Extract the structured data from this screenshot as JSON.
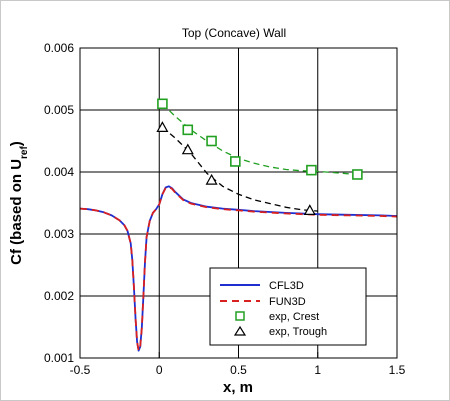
{
  "chart_data": {
    "type": "line",
    "title": "Top (Concave) Wall",
    "xlabel": "x, m",
    "ylabel": {
      "main": "Cf (based on U",
      "sub": "ref",
      "close": ")"
    },
    "xlim": [
      -0.5,
      1.5
    ],
    "ylim": [
      0.001,
      0.006
    ],
    "x_ticks": [
      -0.5,
      0,
      0.5,
      1,
      1.5
    ],
    "x_tick_labels": [
      "-0.5",
      "0",
      "0.5",
      "1",
      "1.5"
    ],
    "y_ticks": [
      0.001,
      0.002,
      0.003,
      0.004,
      0.005,
      0.006
    ],
    "y_tick_labels": [
      "0.001",
      "0.002",
      "0.003",
      "0.004",
      "0.005",
      "0.006"
    ],
    "grid": true,
    "legend_position": "bottom-right",
    "series": [
      {
        "name": "CFL3D",
        "kind": "line",
        "style": "solid",
        "color": "#1f2fcf",
        "x": [
          -0.5,
          -0.45,
          -0.4,
          -0.35,
          -0.3,
          -0.25,
          -0.22,
          -0.2,
          -0.18,
          -0.17,
          -0.16,
          -0.15,
          -0.14,
          -0.13,
          -0.12,
          -0.11,
          -0.1,
          -0.09,
          -0.08,
          -0.06,
          -0.04,
          -0.02,
          0.0,
          0.02,
          0.04,
          0.06,
          0.08,
          0.1,
          0.15,
          0.2,
          0.3,
          0.4,
          0.5,
          0.6,
          0.8,
          1.0,
          1.2,
          1.4,
          1.5
        ],
        "y": [
          0.00341,
          0.0034,
          0.00338,
          0.00335,
          0.0033,
          0.00322,
          0.00314,
          0.00305,
          0.00285,
          0.00258,
          0.00215,
          0.00165,
          0.00126,
          0.00112,
          0.00118,
          0.00148,
          0.002,
          0.00255,
          0.00295,
          0.00321,
          0.00334,
          0.0034,
          0.00348,
          0.00364,
          0.00375,
          0.00377,
          0.00374,
          0.00368,
          0.00356,
          0.0035,
          0.00344,
          0.00341,
          0.00339,
          0.00337,
          0.00334,
          0.00332,
          0.00331,
          0.0033,
          0.00329
        ]
      },
      {
        "name": "FUN3D",
        "kind": "line",
        "style": "dashed",
        "color": "#d92020",
        "x": [
          -0.5,
          -0.45,
          -0.4,
          -0.35,
          -0.3,
          -0.25,
          -0.22,
          -0.2,
          -0.18,
          -0.17,
          -0.16,
          -0.15,
          -0.14,
          -0.13,
          -0.12,
          -0.11,
          -0.1,
          -0.09,
          -0.08,
          -0.06,
          -0.04,
          -0.02,
          0.0,
          0.02,
          0.04,
          0.06,
          0.08,
          0.1,
          0.15,
          0.2,
          0.3,
          0.4,
          0.5,
          0.6,
          0.8,
          1.0,
          1.2,
          1.4,
          1.5
        ],
        "y": [
          0.00341,
          0.0034,
          0.00338,
          0.00335,
          0.0033,
          0.00322,
          0.00314,
          0.00305,
          0.00285,
          0.00258,
          0.00215,
          0.00165,
          0.00126,
          0.00112,
          0.00118,
          0.00148,
          0.002,
          0.00255,
          0.00295,
          0.00321,
          0.00334,
          0.0034,
          0.00348,
          0.00364,
          0.00374,
          0.00376,
          0.00373,
          0.00367,
          0.00355,
          0.00349,
          0.00343,
          0.0034,
          0.00338,
          0.00336,
          0.00333,
          0.00331,
          0.0033,
          0.00329,
          0.00328
        ]
      },
      {
        "name": "exp, Crest",
        "kind": "scatter",
        "marker": "square",
        "color": "#22a022",
        "x": [
          0.02,
          0.18,
          0.33,
          0.48,
          0.96,
          1.25
        ],
        "y": [
          0.0051,
          0.00468,
          0.0045,
          0.00417,
          0.00403,
          0.00396
        ],
        "fit": {
          "style": "dashed",
          "x": [
            0.02,
            0.1,
            0.2,
            0.3,
            0.4,
            0.5,
            0.6,
            0.7,
            0.8,
            0.9,
            1.0,
            1.1,
            1.25
          ],
          "y": [
            0.0051,
            0.0049,
            0.00468,
            0.0045,
            0.00434,
            0.00422,
            0.00414,
            0.00408,
            0.00404,
            0.00402,
            0.00401,
            0.00399,
            0.00396
          ]
        }
      },
      {
        "name": "exp, Trough",
        "kind": "scatter",
        "marker": "triangle",
        "color": "#000000",
        "x": [
          0.02,
          0.18,
          0.33,
          0.95
        ],
        "y": [
          0.00472,
          0.00436,
          0.00387,
          0.00338
        ],
        "fit": {
          "style": "dashed",
          "x": [
            0.02,
            0.1,
            0.2,
            0.3,
            0.4,
            0.5,
            0.6,
            0.7,
            0.8,
            0.9,
            0.95,
            1.0
          ],
          "y": [
            0.00472,
            0.00455,
            0.0043,
            0.00398,
            0.00377,
            0.00364,
            0.00355,
            0.00349,
            0.00343,
            0.00339,
            0.00338,
            0.00337
          ]
        }
      }
    ]
  }
}
